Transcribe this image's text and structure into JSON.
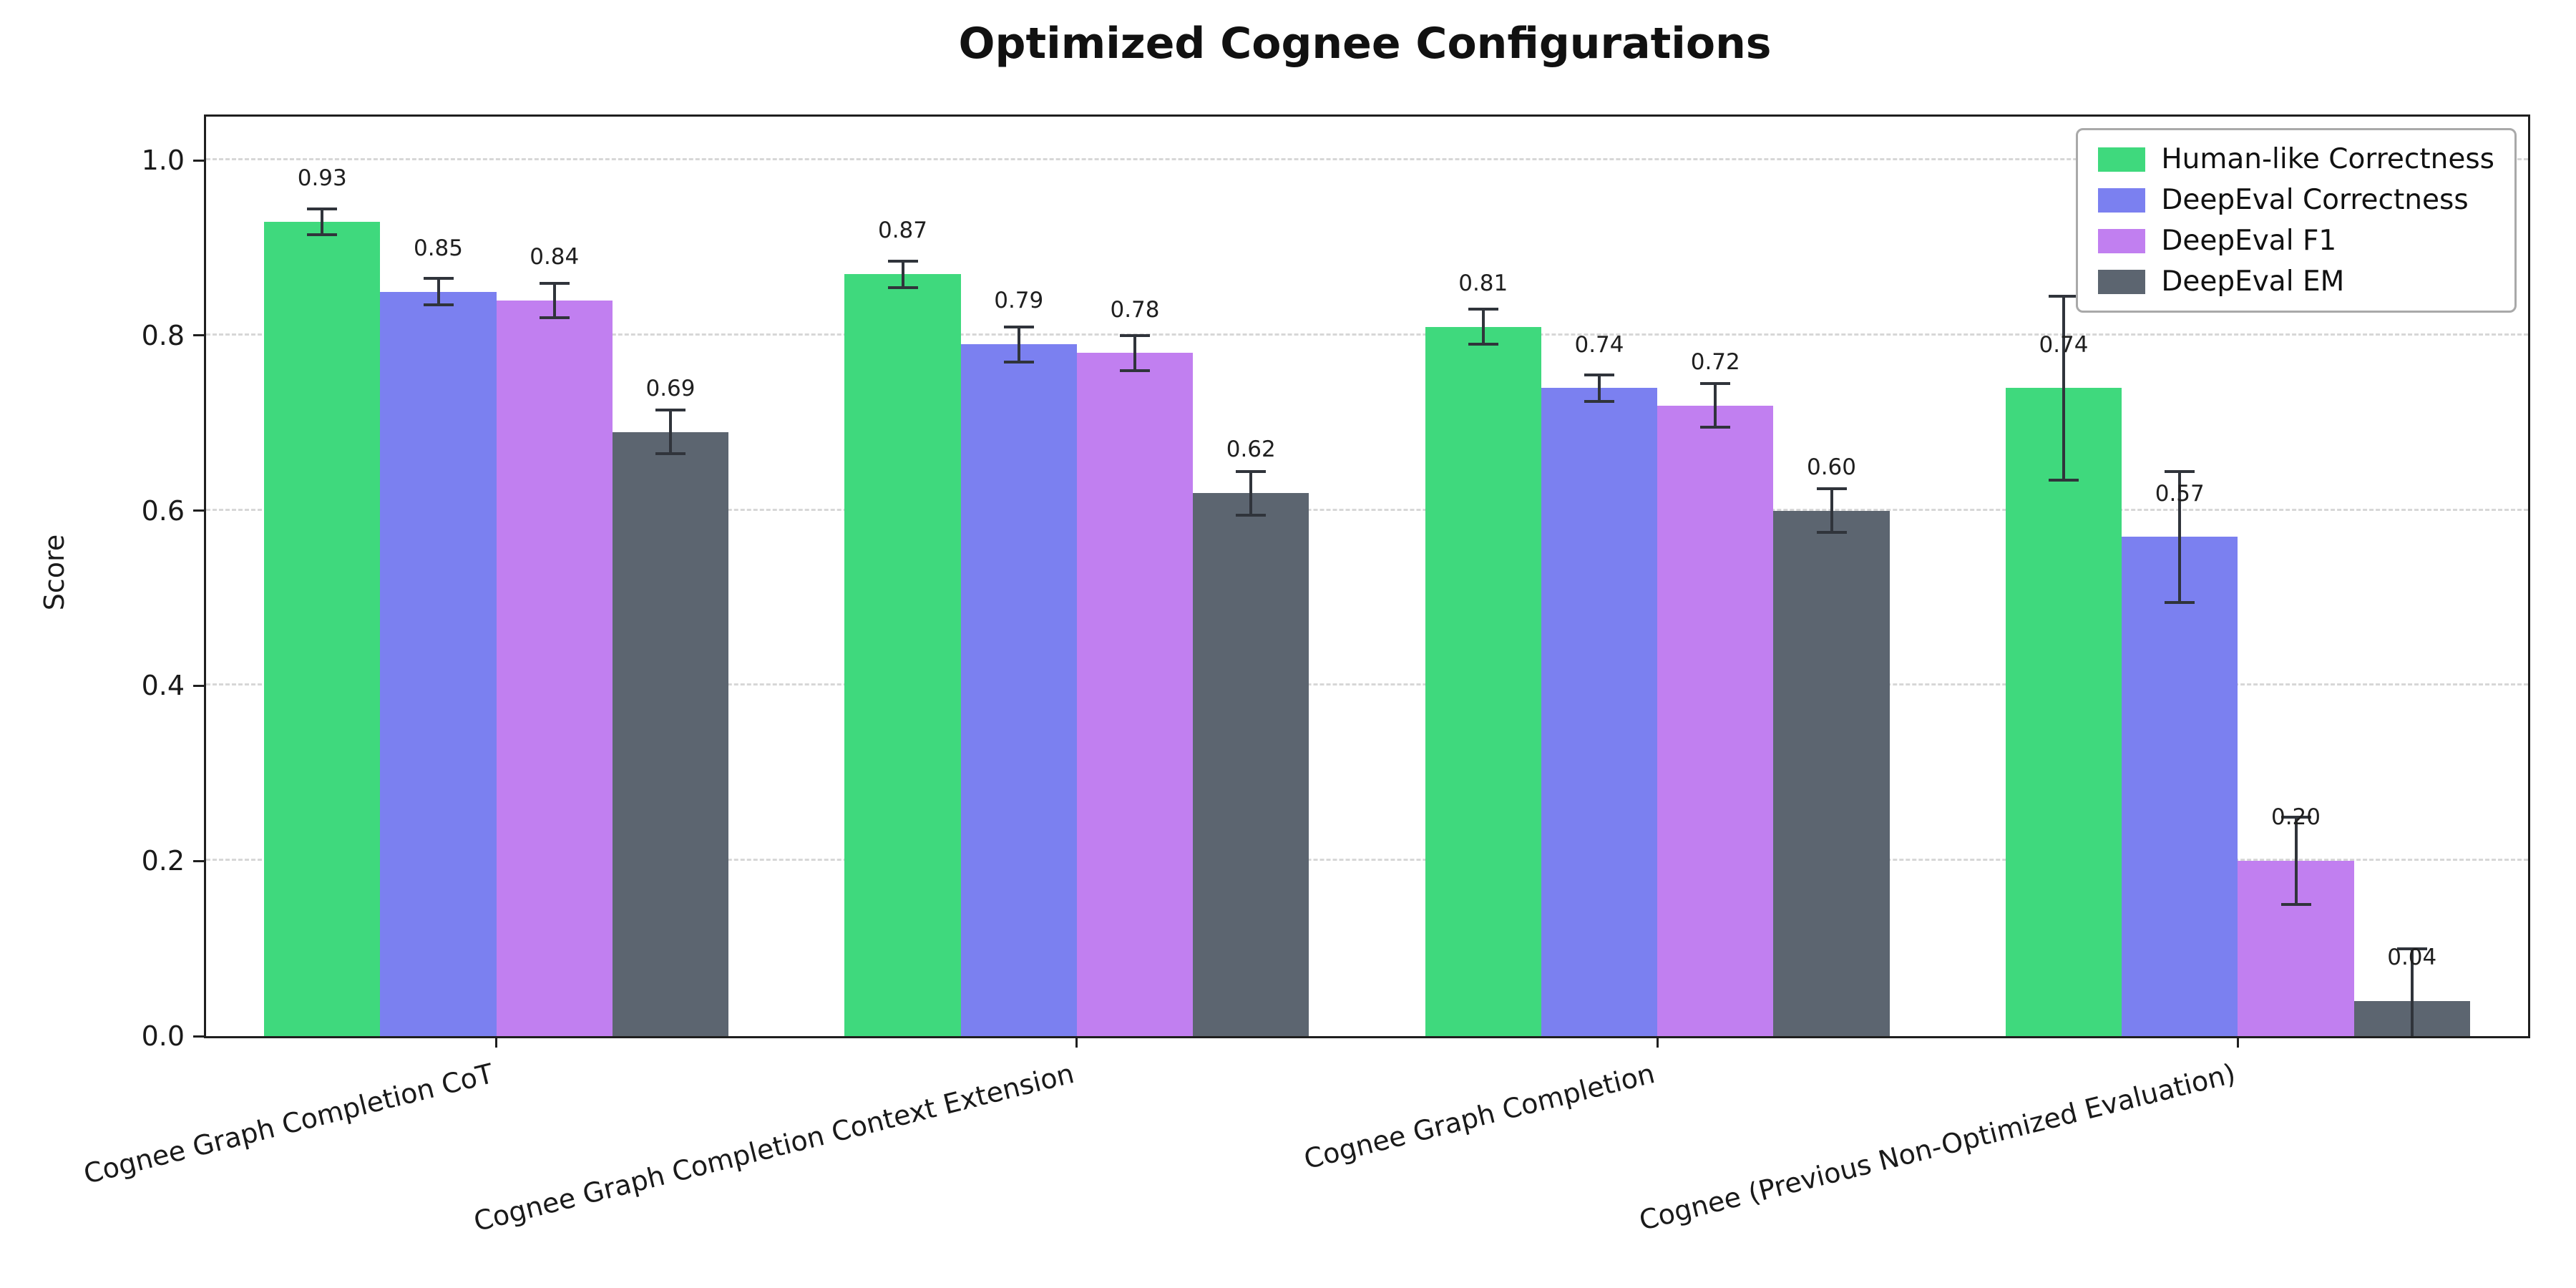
{
  "figure": {
    "background": "#ffffff"
  },
  "chart_data": {
    "type": "bar",
    "title": "Optimized Cognee Configurations",
    "xlabel": "",
    "ylabel": "Score",
    "ylim": [
      0,
      1.05
    ],
    "yticks": [
      0,
      0.2,
      0.4,
      0.6,
      0.8,
      1.0
    ],
    "grid": "horizontal dashed",
    "legend_position": "upper right",
    "error_bars": true,
    "error_color": "#30343b",
    "value_label_decimals": 2,
    "categories": [
      "Cognee Graph Completion CoT",
      "Cognee Graph Completion Context Extension",
      "Cognee Graph Completion",
      "Cognee (Previous Non-Optimized Evaluation)"
    ],
    "series": [
      {
        "name": "Human-like Correctness",
        "color": "#3fd97d",
        "values": [
          0.93,
          0.87,
          0.81,
          0.74
        ],
        "errors": [
          0.015,
          0.015,
          0.02,
          0.105
        ]
      },
      {
        "name": "DeepEval Correctness",
        "color": "#7b80f0",
        "values": [
          0.85,
          0.79,
          0.74,
          0.57
        ],
        "errors": [
          0.015,
          0.02,
          0.015,
          0.075
        ]
      },
      {
        "name": "DeepEval F1",
        "color": "#c17ff0",
        "values": [
          0.84,
          0.78,
          0.72,
          0.2
        ],
        "errors": [
          0.02,
          0.02,
          0.025,
          0.05
        ]
      },
      {
        "name": "DeepEval EM",
        "color": "#5c6570",
        "values": [
          0.69,
          0.62,
          0.6,
          0.04
        ],
        "errors": [
          0.025,
          0.025,
          0.025,
          0.06
        ]
      }
    ]
  }
}
